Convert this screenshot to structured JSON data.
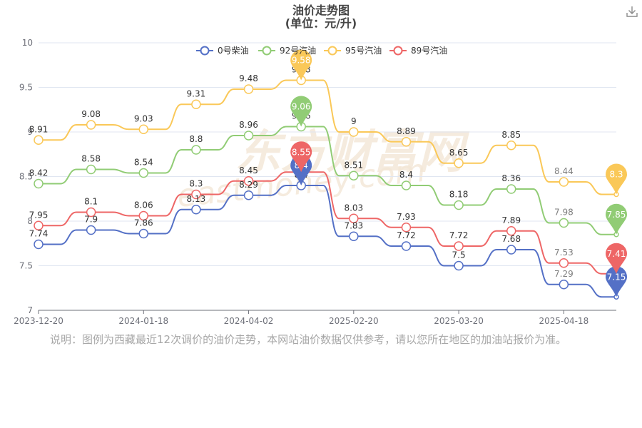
{
  "title": "油价走势图",
  "subtitle": "(单位：元/升)",
  "note": "说明：图例为西藏最近12次调价的油价走势，本网站油价数据仅供参考，请以您所在地区的加油站报价为准。",
  "watermark": "东方财富网 eastmoney.com",
  "icons": {
    "download": "download-icon"
  },
  "chart_data": {
    "type": "line",
    "title": "油价走势图",
    "subtitle": "(单位：元/升)",
    "ylim": [
      7,
      10
    ],
    "yticks": [
      "7",
      "7.5",
      "8",
      "8.5",
      "9",
      "9.5",
      "10"
    ],
    "x_tick_labels": [
      "2023-12-20",
      "2024-01-18",
      "2024-04-02",
      "2025-02-20",
      "2025-03-20",
      "2025-04-18"
    ],
    "x_tick_index": [
      0,
      2,
      4,
      6,
      8,
      10
    ],
    "grid": true,
    "legend_position": "top",
    "series": [
      {
        "name": "0号柴油",
        "color": "#5470c6",
        "values": [
          7.74,
          7.9,
          7.86,
          8.13,
          8.29,
          8.4,
          7.83,
          7.72,
          7.5,
          7.68,
          7.29,
          7.15
        ],
        "max_pin": "8.4",
        "last_pin": "7.15"
      },
      {
        "name": "92号汽油",
        "color": "#91cc75",
        "values": [
          8.42,
          8.58,
          8.54,
          8.8,
          8.96,
          9.06,
          8.51,
          8.4,
          8.18,
          8.36,
          7.98,
          7.85
        ],
        "max_pin": "9.06",
        "last_pin": "7.85"
      },
      {
        "name": "95号汽油",
        "color": "#fac858",
        "values": [
          8.91,
          9.08,
          9.03,
          9.31,
          9.48,
          9.58,
          9,
          8.89,
          8.65,
          8.85,
          8.44,
          8.3
        ],
        "max_pin": "9.58",
        "last_pin": "8.3"
      },
      {
        "name": "89号汽油",
        "color": "#ee6666",
        "values": [
          7.95,
          8.1,
          8.06,
          8.3,
          8.45,
          8.55,
          8.03,
          7.93,
          7.72,
          7.89,
          7.53,
          7.41
        ],
        "max_pin": "8.55",
        "last_pin": "7.41"
      }
    ]
  }
}
